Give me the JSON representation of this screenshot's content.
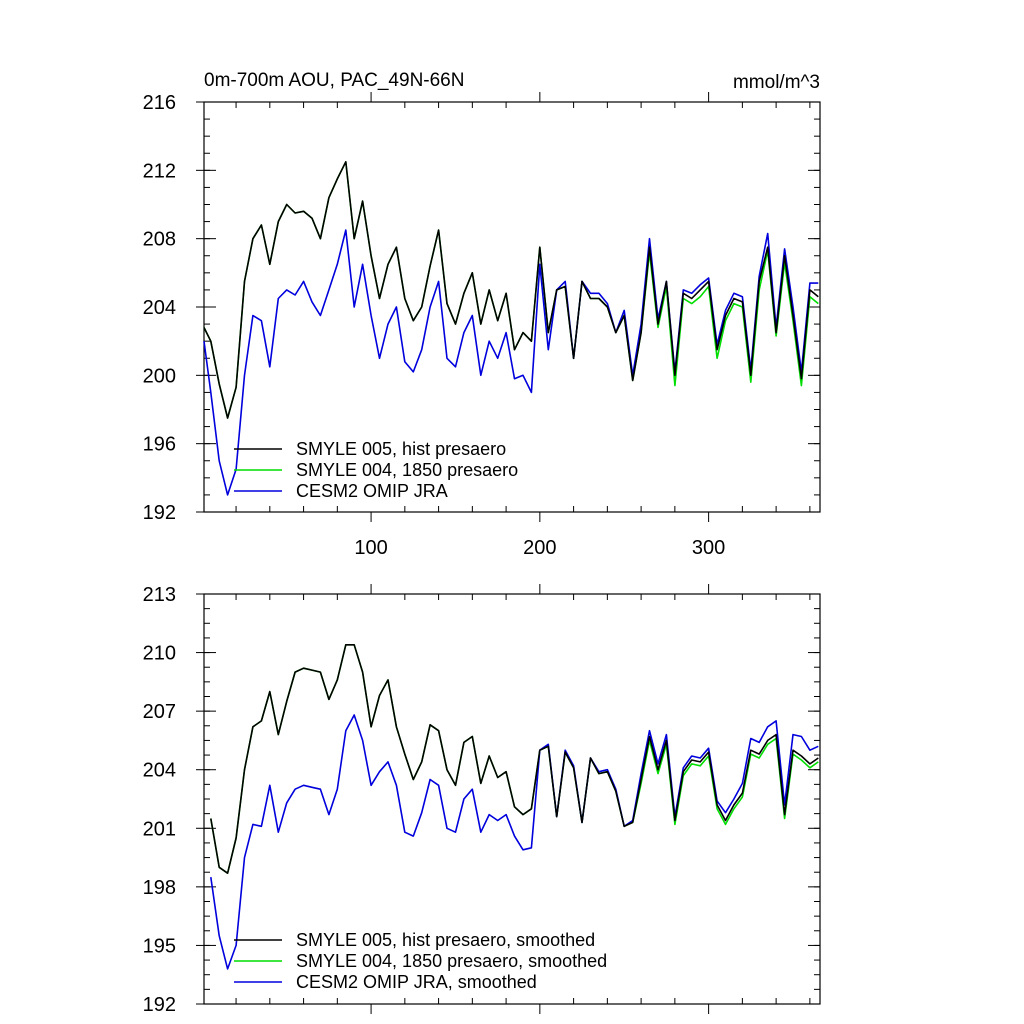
{
  "chart_data": [
    {
      "type": "line",
      "title": "0m-700m AOU, PAC_49N-66N",
      "units": "mmol/m^3",
      "xlim": [
        1,
        366
      ],
      "ylim": [
        192,
        216
      ],
      "xticks": [
        100,
        200,
        300
      ],
      "yticks": [
        192,
        196,
        200,
        204,
        208,
        212,
        216
      ],
      "grid": false,
      "legend": "bottom-left",
      "series": [
        {
          "name": "SMYLE 005, hist presaero",
          "color": "#000000",
          "x": [
            1,
            5,
            10,
            15,
            20,
            25,
            30,
            35,
            40,
            45,
            50,
            55,
            60,
            65,
            70,
            75,
            80,
            85,
            90,
            95,
            100,
            105,
            110,
            115,
            120,
            125,
            130,
            135,
            140,
            145,
            150,
            155,
            160,
            165,
            170,
            175,
            180,
            185,
            190,
            195,
            200,
            205,
            210,
            215,
            220,
            225,
            230,
            235,
            240,
            245,
            250,
            255,
            260,
            265,
            270,
            275,
            280,
            285,
            290,
            295,
            300,
            305,
            310,
            315,
            320,
            325,
            330,
            335,
            340,
            345,
            350,
            355,
            360,
            365
          ],
          "y": [
            202.8,
            202,
            199.5,
            197.5,
            199.3,
            205.5,
            208,
            208.8,
            206.5,
            209,
            210,
            209.5,
            209.6,
            209.2,
            208,
            210.4,
            211.5,
            212.5,
            208,
            210.2,
            207,
            204.5,
            206.5,
            207.5,
            204.5,
            203.2,
            204,
            206.4,
            208.5,
            204.2,
            203,
            204.8,
            206,
            203,
            205,
            203.2,
            204.8,
            201.5,
            202.5,
            202,
            207.5,
            202.5,
            205,
            205.2,
            201,
            205.5,
            204.5,
            204.5,
            204,
            202.5,
            203.5,
            199.7,
            202.5,
            207.5,
            203,
            205.5,
            200,
            204.8,
            204.5,
            205,
            205.5,
            201.5,
            203.5,
            204.5,
            204.3,
            200,
            205.5,
            207.5,
            202.5,
            207,
            203.5,
            199.8,
            205,
            204.6
          ]
        },
        {
          "name": "SMYLE 004, 1850 presaero",
          "color": "#00dd00",
          "x": [
            1,
            5,
            10,
            15,
            20,
            25,
            30,
            35,
            40,
            45,
            50,
            55,
            60,
            65,
            70,
            75,
            80,
            85,
            90,
            95,
            100,
            105,
            110,
            115,
            120,
            125,
            130,
            135,
            140,
            145,
            150,
            155,
            160,
            165,
            170,
            175,
            180,
            185,
            190,
            195,
            200,
            205,
            210,
            215,
            220,
            225,
            230,
            235,
            240,
            245,
            250,
            255,
            260,
            265,
            270,
            275,
            280,
            285,
            290,
            295,
            300,
            305,
            310,
            315,
            320,
            325,
            330,
            335,
            340,
            345,
            350,
            355,
            360,
            365
          ],
          "y": [
            202.8,
            202,
            199.5,
            197.5,
            199.3,
            205.5,
            208,
            208.8,
            206.5,
            209,
            210,
            209.5,
            209.6,
            209.2,
            208,
            210.4,
            211.5,
            212.5,
            208,
            210.2,
            207,
            204.5,
            206.5,
            207.5,
            204.5,
            203.2,
            204,
            206.4,
            208.5,
            204.2,
            203,
            204.8,
            206,
            203,
            205,
            203.2,
            204.8,
            201.5,
            202.5,
            202,
            207.5,
            202.5,
            205,
            205.2,
            201,
            205.5,
            204.5,
            204.5,
            204,
            202.5,
            203.5,
            199.7,
            202.5,
            207.2,
            202.8,
            205.2,
            199.4,
            204.5,
            204.2,
            204.6,
            205.2,
            201,
            203.2,
            204.2,
            204,
            199.6,
            205,
            207.3,
            202.3,
            206.6,
            203.2,
            199.4,
            204.6,
            204.2
          ]
        },
        {
          "name": "CESM2 OMIP JRA",
          "color": "#0000dd",
          "x": [
            1,
            5,
            10,
            15,
            20,
            25,
            30,
            35,
            40,
            45,
            50,
            55,
            60,
            65,
            70,
            75,
            80,
            85,
            90,
            95,
            100,
            105,
            110,
            115,
            120,
            125,
            130,
            135,
            140,
            145,
            150,
            155,
            160,
            165,
            170,
            175,
            180,
            185,
            190,
            195,
            200,
            205,
            210,
            215,
            220,
            225,
            230,
            235,
            240,
            245,
            250,
            255,
            260,
            265,
            270,
            275,
            280,
            285,
            290,
            295,
            300,
            305,
            310,
            315,
            320,
            325,
            330,
            335,
            340,
            345,
            350,
            355,
            360,
            365
          ],
          "y": [
            202,
            199,
            195,
            193,
            194.5,
            200,
            203.5,
            203.2,
            200.5,
            204.5,
            205,
            204.7,
            205.5,
            204.3,
            203.5,
            205,
            206.5,
            208.5,
            204,
            206.5,
            203.5,
            201,
            203,
            204,
            200.8,
            200.2,
            201.5,
            204,
            205.5,
            201,
            200.5,
            202.5,
            203.5,
            200,
            202,
            201,
            202.5,
            199.8,
            200,
            199,
            206.5,
            201.5,
            205,
            205.5,
            201,
            205.5,
            204.8,
            204.8,
            204.2,
            202.5,
            203.8,
            200,
            203,
            208,
            203.3,
            205.5,
            200.2,
            205,
            204.8,
            205.3,
            205.7,
            201.8,
            203.8,
            204.8,
            204.6,
            200.3,
            205.8,
            208.3,
            202.8,
            207.4,
            204,
            200.2,
            205.4,
            205.4
          ]
        }
      ]
    },
    {
      "type": "line",
      "title": "",
      "xlim": [
        1,
        366
      ],
      "ylim": [
        192,
        213
      ],
      "xticks": [
        100,
        200,
        300
      ],
      "yticks": [
        192,
        195,
        198,
        201,
        204,
        207,
        210,
        213
      ],
      "grid": false,
      "legend": "bottom-left",
      "series": [
        {
          "name": "SMYLE 005, hist presaero, smoothed",
          "color": "#000000",
          "x": [
            5,
            10,
            15,
            20,
            25,
            30,
            35,
            40,
            45,
            50,
            55,
            60,
            65,
            70,
            75,
            80,
            85,
            90,
            95,
            100,
            105,
            110,
            115,
            120,
            125,
            130,
            135,
            140,
            145,
            150,
            155,
            160,
            165,
            170,
            175,
            180,
            185,
            190,
            195,
            200,
            205,
            210,
            215,
            220,
            225,
            230,
            235,
            240,
            245,
            250,
            255,
            260,
            265,
            270,
            275,
            280,
            285,
            290,
            295,
            300,
            305,
            310,
            315,
            320,
            325,
            330,
            335,
            340,
            345,
            350,
            355,
            360,
            365
          ],
          "y": [
            201.5,
            199,
            198.7,
            200.5,
            204,
            206.2,
            206.5,
            208,
            205.8,
            207.5,
            209,
            209.2,
            209.1,
            209,
            207.6,
            208.6,
            210.4,
            210.4,
            209,
            206.2,
            207.8,
            208.6,
            206.2,
            204.8,
            203.5,
            204.4,
            206.3,
            206,
            204,
            203.2,
            205.4,
            205.7,
            203.3,
            204.7,
            203.6,
            203.9,
            202.1,
            201.7,
            202,
            205,
            205.2,
            201.6,
            204.9,
            204.1,
            201.3,
            204.6,
            203.8,
            203.9,
            202.9,
            201.1,
            201.3,
            203.5,
            205.7,
            204,
            205.5,
            201.4,
            203.9,
            204.5,
            204.4,
            204.9,
            202.2,
            201.4,
            202.2,
            202.8,
            205,
            204.8,
            205.5,
            205.8,
            201.7,
            205,
            204.7,
            204.3,
            204.6
          ]
        },
        {
          "name": "SMYLE 004, 1850 presaero, smoothed",
          "color": "#00dd00",
          "x": [
            5,
            10,
            15,
            20,
            25,
            30,
            35,
            40,
            45,
            50,
            55,
            60,
            65,
            70,
            75,
            80,
            85,
            90,
            95,
            100,
            105,
            110,
            115,
            120,
            125,
            130,
            135,
            140,
            145,
            150,
            155,
            160,
            165,
            170,
            175,
            180,
            185,
            190,
            195,
            200,
            205,
            210,
            215,
            220,
            225,
            230,
            235,
            240,
            245,
            250,
            255,
            260,
            265,
            270,
            275,
            280,
            285,
            290,
            295,
            300,
            305,
            310,
            315,
            320,
            325,
            330,
            335,
            340,
            345,
            350,
            355,
            360,
            365
          ],
          "y": [
            201.5,
            199,
            198.7,
            200.5,
            204,
            206.2,
            206.5,
            208,
            205.8,
            207.5,
            209,
            209.2,
            209.1,
            209,
            207.6,
            208.6,
            210.4,
            210.4,
            209,
            206.2,
            207.8,
            208.6,
            206.2,
            204.8,
            203.5,
            204.4,
            206.3,
            206,
            204,
            203.2,
            205.4,
            205.7,
            203.3,
            204.7,
            203.6,
            203.9,
            202.1,
            201.7,
            202,
            205,
            205.2,
            201.6,
            204.9,
            204.1,
            201.3,
            204.6,
            203.8,
            203.9,
            202.9,
            201.1,
            201.3,
            203.3,
            205.5,
            203.8,
            205.3,
            201.2,
            203.7,
            204.3,
            204.2,
            204.7,
            202,
            201.2,
            202,
            202.6,
            204.8,
            204.6,
            205.3,
            205.6,
            201.5,
            204.8,
            204.5,
            204.1,
            204.4
          ]
        },
        {
          "name": "CESM2 OMIP JRA, smoothed",
          "color": "#0000dd",
          "x": [
            5,
            10,
            15,
            20,
            25,
            30,
            35,
            40,
            45,
            50,
            55,
            60,
            65,
            70,
            75,
            80,
            85,
            90,
            95,
            100,
            105,
            110,
            115,
            120,
            125,
            130,
            135,
            140,
            145,
            150,
            155,
            160,
            165,
            170,
            175,
            180,
            185,
            190,
            195,
            200,
            205,
            210,
            215,
            220,
            225,
            230,
            235,
            240,
            245,
            250,
            255,
            260,
            265,
            270,
            275,
            280,
            285,
            290,
            295,
            300,
            305,
            310,
            315,
            320,
            325,
            330,
            335,
            340,
            345,
            350,
            355,
            360,
            365
          ],
          "y": [
            198.5,
            195.5,
            193.8,
            195,
            199.5,
            201.2,
            201.1,
            203.2,
            200.8,
            202.3,
            203,
            203.2,
            203.1,
            203,
            201.7,
            203,
            206,
            206.8,
            205.5,
            203.2,
            203.9,
            204.4,
            203.2,
            200.8,
            200.6,
            201.8,
            203.5,
            203.2,
            201,
            200.8,
            202.5,
            203,
            200.8,
            201.7,
            201.4,
            201.7,
            200.6,
            199.9,
            200,
            205,
            205.3,
            201.6,
            205,
            204.2,
            201.3,
            204.6,
            203.9,
            204,
            203,
            201.1,
            201.4,
            203.8,
            206,
            204.3,
            205.8,
            201.6,
            204.1,
            204.7,
            204.6,
            205.1,
            202.4,
            201.8,
            202.5,
            203.3,
            205.6,
            205.4,
            206.2,
            206.5,
            202.2,
            205.8,
            205.7,
            205,
            205.2
          ]
        }
      ]
    }
  ]
}
